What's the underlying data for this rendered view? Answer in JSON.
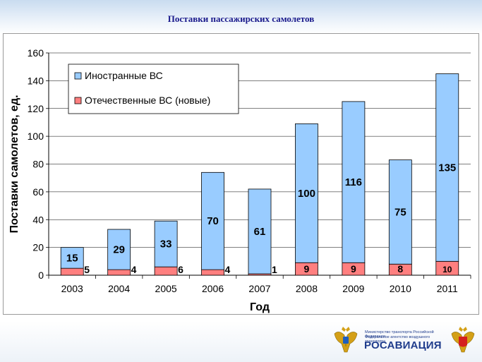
{
  "header": {
    "title": "Поставки пассажирских самолетов"
  },
  "footer": {
    "ministry_line1": "Министерство транспорта Российской Федерации",
    "ministry_line2": "Федеральное агентство воздушного транспорта",
    "brand": "РОСАВИАЦИЯ",
    "emblem_icon": "double-headed-eagle-icon"
  },
  "chart_data": {
    "type": "bar",
    "stacked": true,
    "title": "",
    "xlabel": "Год",
    "ylabel": "Поставки самолетов, ед.",
    "categories": [
      "2003",
      "2004",
      "2005",
      "2006",
      "2007",
      "2008",
      "2009",
      "2010",
      "2011"
    ],
    "ylim": [
      0,
      160
    ],
    "yticks": [
      0,
      20,
      40,
      60,
      80,
      100,
      120,
      140,
      160
    ],
    "grid": true,
    "legend_position": "top-left",
    "series": [
      {
        "name": "Отечественные ВС (новые)",
        "color": "#ff7f7f",
        "values": [
          5,
          4,
          6,
          4,
          1,
          9,
          9,
          8,
          10
        ]
      },
      {
        "name": "Иностранные ВС",
        "color": "#99ccff",
        "values": [
          15,
          29,
          33,
          70,
          61,
          100,
          116,
          75,
          135
        ]
      }
    ]
  }
}
